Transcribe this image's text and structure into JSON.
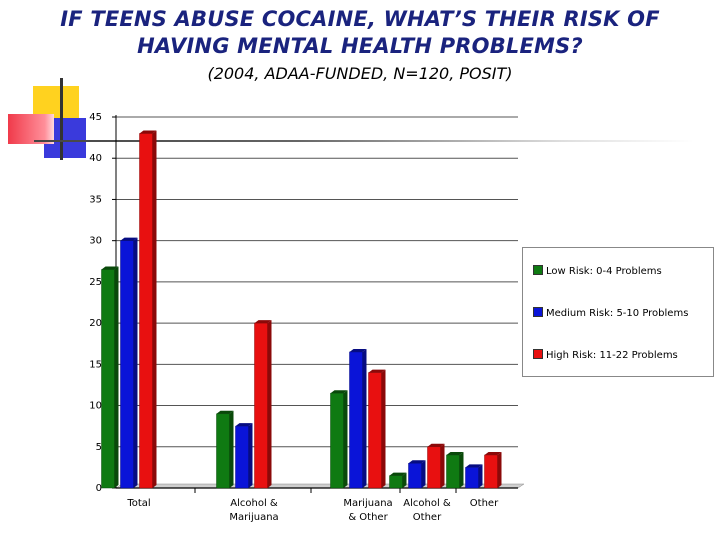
{
  "slide": {
    "title_line1": "IF TEENS ABUSE COCAINE, WHAT’S THEIR RISK OF",
    "title_line2": "HAVING MENTAL HEALTH PROBLEMS?",
    "subtitle": "(2004, ADAA-FUNDED, N=120, POSIT)"
  },
  "chart_data": {
    "type": "bar",
    "title": "IF TEENS ABUSE COCAINE, WHAT’S THEIR RISK OF HAVING MENTAL HEALTH PROBLEMS?",
    "subtitle": "(2004, ADAA-FUNDED, N=120, POSIT)",
    "categories": [
      [
        "Total"
      ],
      [
        "Alcohol &",
        "Marijuana"
      ],
      [
        "Marijuana",
        "& Other"
      ],
      [
        "Alcohol &",
        "Other"
      ],
      [
        "Other"
      ]
    ],
    "series": [
      {
        "name": "Low Risk: 0-4 Problems",
        "color": "#0f7a12",
        "values": [
          26.5,
          9,
          11.5,
          1.5,
          4
        ]
      },
      {
        "name": "Medium Risk: 5-10 Problems",
        "color": "#0a14d8",
        "values": [
          30,
          7.5,
          16.5,
          3,
          2.5
        ]
      },
      {
        "name": "High Risk: 11-22 Problems",
        "color": "#e81010",
        "values": [
          43,
          20,
          14,
          5,
          4
        ]
      }
    ],
    "ylim": [
      0,
      45
    ],
    "yticks": [
      0,
      5,
      10,
      15,
      20,
      25,
      30,
      35,
      40,
      45
    ],
    "grid": true,
    "legend_position": "right"
  }
}
